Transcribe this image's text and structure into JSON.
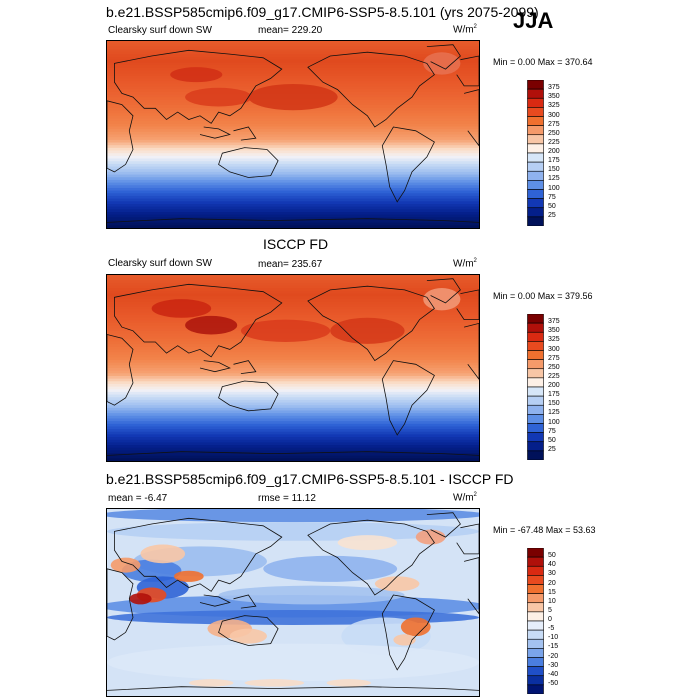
{
  "season": "JJA",
  "panels": [
    {
      "title": "b.e21.BSSP585cmip6.f09_g17.CMIP6-SSP5-8.5.101 (yrs 2075-2099)",
      "left_label": "Clearsky surf down SW",
      "center_label": "mean= 229.20",
      "units": "W/m",
      "units_sup": "2",
      "minmax": "Min =   0.00 Max = 370.64",
      "colorbar": {
        "labels": [
          "375",
          "350",
          "325",
          "300",
          "275",
          "250",
          "225",
          "200",
          "175",
          "150",
          "125",
          "100",
          "75",
          "50",
          "25"
        ],
        "colors": [
          "#7a0000",
          "#b0100a",
          "#d92a12",
          "#e84a1f",
          "#f0702f",
          "#f59a6a",
          "#f8c6a6",
          "#fdf0e6",
          "#d6e6f8",
          "#b6cff4",
          "#8fb2ee",
          "#5e8fe6",
          "#2f63d6",
          "#1238b4",
          "#041f8a",
          "#00115a"
        ]
      },
      "style": "abs"
    },
    {
      "title": "ISCCP FD",
      "left_label": "Clearsky surf down SW",
      "center_label": "mean= 235.67",
      "units": "W/m",
      "units_sup": "2",
      "minmax": "Min =   0.00 Max = 379.56",
      "colorbar": {
        "labels": [
          "375",
          "350",
          "325",
          "300",
          "275",
          "250",
          "225",
          "200",
          "175",
          "150",
          "125",
          "100",
          "75",
          "50",
          "25"
        ],
        "colors": [
          "#7a0000",
          "#b0100a",
          "#d92a12",
          "#e84a1f",
          "#f0702f",
          "#f59a6a",
          "#f8c6a6",
          "#fdf0e6",
          "#d6e6f8",
          "#b6cff4",
          "#8fb2ee",
          "#5e8fe6",
          "#2f63d6",
          "#1238b4",
          "#041f8a",
          "#00115a"
        ]
      },
      "style": "abs2"
    },
    {
      "title": "b.e21.BSSP585cmip6.f09_g17.CMIP6-SSP5-8.5.101 - ISCCP FD",
      "left_label": "mean =  -6.47",
      "center_label": "rmse =  11.12",
      "units": "W/m",
      "units_sup": "2",
      "minmax": "Min = -67.48 Max =  53.63",
      "colorbar": {
        "labels": [
          "50",
          "40",
          "30",
          "20",
          "15",
          "10",
          "5",
          "0",
          "-5",
          "-10",
          "-15",
          "-20",
          "-30",
          "-40",
          "-50"
        ],
        "colors": [
          "#7a0000",
          "#b0100a",
          "#d92a12",
          "#e84a1f",
          "#f0702f",
          "#f59a6a",
          "#f8c6a6",
          "#fdf0e6",
          "#e6eefa",
          "#c8dcf6",
          "#a4c2f0",
          "#7aa4ea",
          "#4a7ee0",
          "#1f4fc8",
          "#0a2fa0",
          "#001472"
        ]
      },
      "style": "diff"
    }
  ]
}
